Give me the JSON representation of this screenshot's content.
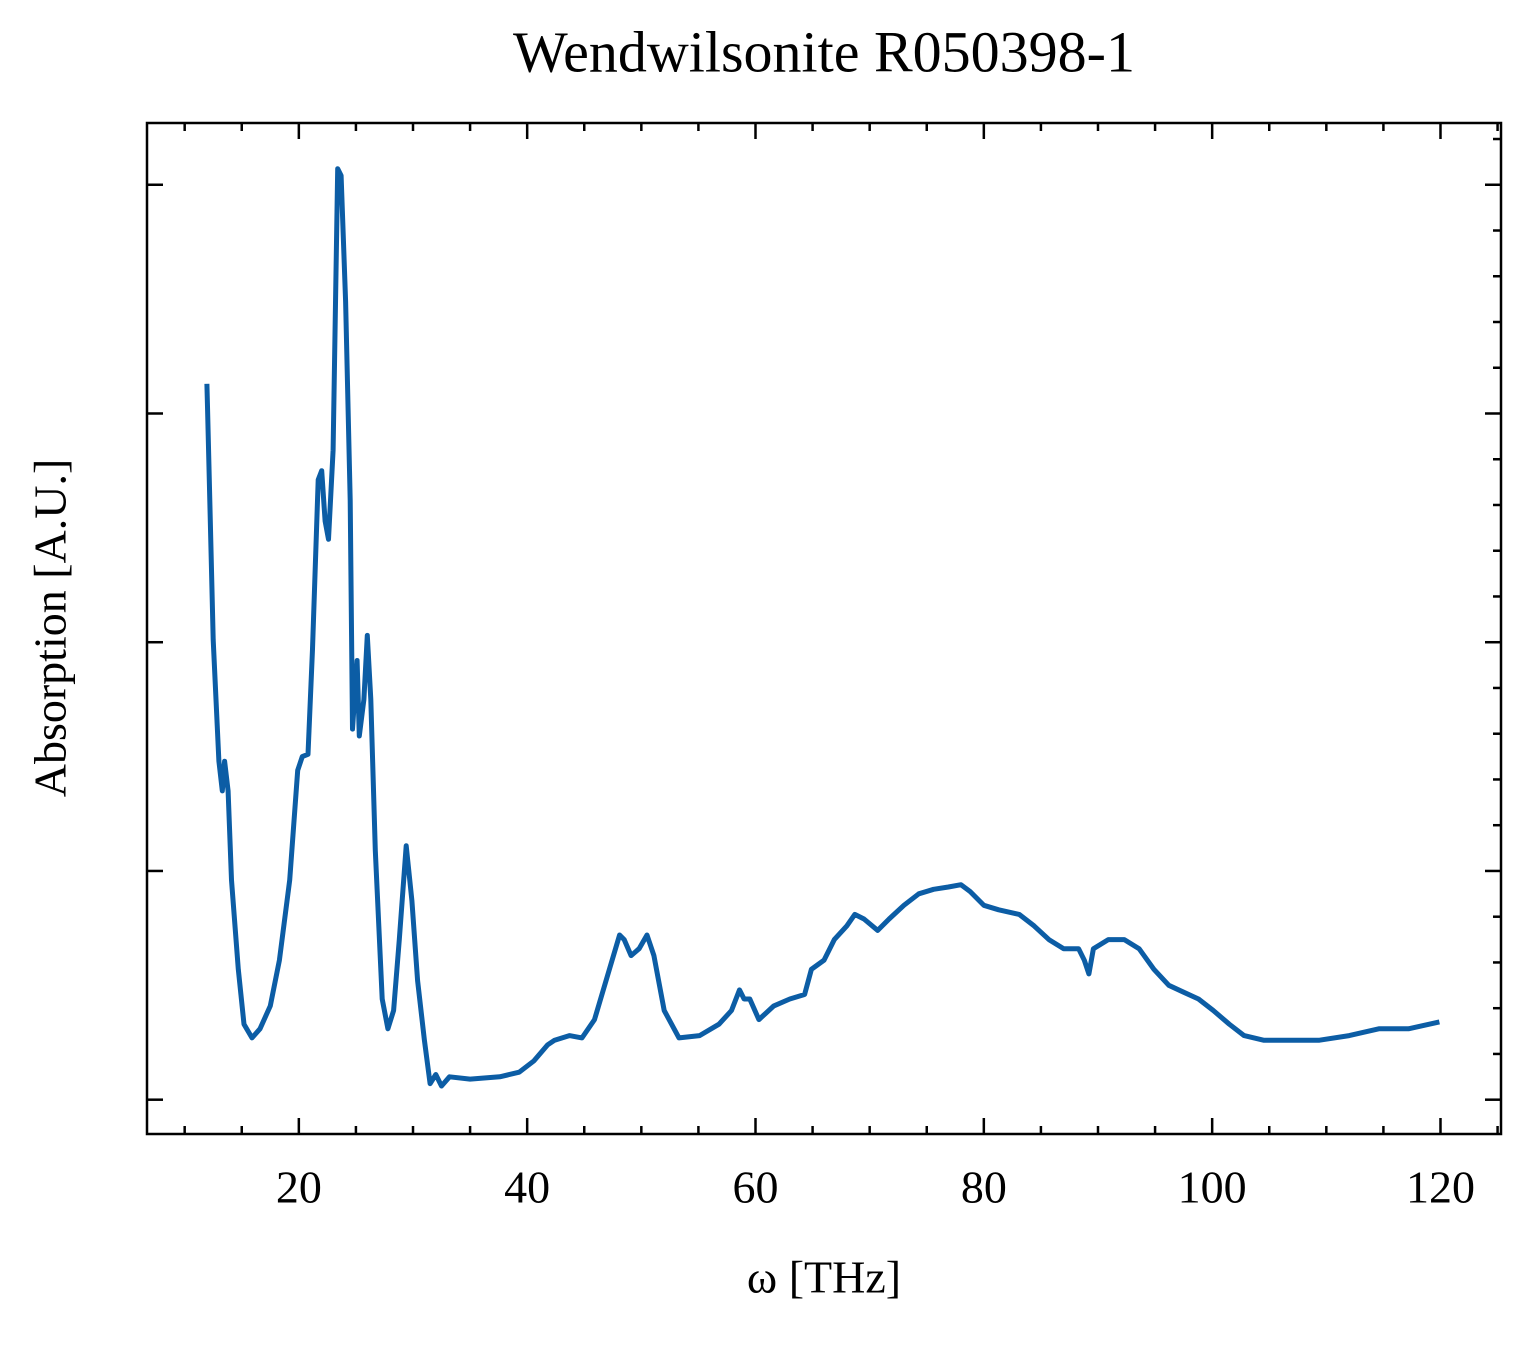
{
  "chart_data": {
    "type": "line",
    "title": "Wendwilsonite R050398-1",
    "xlabel": "ω [THz]",
    "ylabel": "Absorption [A.U.]",
    "xlim": [
      6.7,
      125.3
    ],
    "ylim": [
      -0.15,
      4.27
    ],
    "xticks": [
      20,
      40,
      60,
      80,
      100,
      120
    ],
    "yticks": [
      0,
      1,
      2,
      3,
      4
    ],
    "ytick_labels": false,
    "series": [
      {
        "color": "#0c5da5",
        "x": [
          11.95,
          12.0,
          12.2,
          12.5,
          13.0,
          13.3,
          13.5,
          13.8,
          14.1,
          14.7,
          15.2,
          15.9,
          16.6,
          17.5,
          18.3,
          19.2,
          19.9,
          20.3,
          20.8,
          21.2,
          21.7,
          22.0,
          22.3,
          22.6,
          23.0,
          23.4,
          23.7,
          24.1,
          24.5,
          24.7,
          25.1,
          25.3,
          25.7,
          26.0,
          26.3,
          26.7,
          27.3,
          27.8,
          28.3,
          28.8,
          29.4,
          29.9,
          30.4,
          31.0,
          31.5,
          32.0,
          32.5,
          33.2,
          35.0,
          37.6,
          39.3,
          40.6,
          41.8,
          42.4,
          43.7,
          44.8,
          45.9,
          47.2,
          48.1,
          48.5,
          49.1,
          49.8,
          50.5,
          51.1,
          52.0,
          53.3,
          55.1,
          56.8,
          57.9,
          58.6,
          59.0,
          59.5,
          60.3,
          61.6,
          63.0,
          64.3,
          64.9,
          66.0,
          66.9,
          68.0,
          68.7,
          69.5,
          70.7,
          71.7,
          73.0,
          74.3,
          75.6,
          76.9,
          78.0,
          78.8,
          80.0,
          81.3,
          83.1,
          84.4,
          85.7,
          87.0,
          88.3,
          88.8,
          89.2,
          89.6,
          90.9,
          92.3,
          93.6,
          94.9,
          96.2,
          97.5,
          98.8,
          100.1,
          101.5,
          102.8,
          104.5,
          106.7,
          109.4,
          112.0,
          114.6,
          117.2,
          119.9
        ],
        "values": [
          3.13,
          3.03,
          2.62,
          2.01,
          1.48,
          1.35,
          1.48,
          1.35,
          0.96,
          0.57,
          0.33,
          0.27,
          0.31,
          0.41,
          0.61,
          0.96,
          1.44,
          1.5,
          1.51,
          1.97,
          2.71,
          2.75,
          2.53,
          2.45,
          2.84,
          4.07,
          4.04,
          3.49,
          2.62,
          1.62,
          1.92,
          1.59,
          1.75,
          2.03,
          1.75,
          1.09,
          0.44,
          0.31,
          0.39,
          0.7,
          1.11,
          0.87,
          0.52,
          0.26,
          0.07,
          0.11,
          0.06,
          0.1,
          0.09,
          0.1,
          0.12,
          0.17,
          0.24,
          0.26,
          0.28,
          0.27,
          0.35,
          0.57,
          0.72,
          0.7,
          0.63,
          0.66,
          0.72,
          0.63,
          0.39,
          0.27,
          0.28,
          0.33,
          0.39,
          0.48,
          0.44,
          0.44,
          0.35,
          0.41,
          0.44,
          0.46,
          0.57,
          0.61,
          0.7,
          0.76,
          0.81,
          0.79,
          0.74,
          0.79,
          0.85,
          0.9,
          0.92,
          0.93,
          0.94,
          0.91,
          0.85,
          0.83,
          0.81,
          0.76,
          0.7,
          0.66,
          0.66,
          0.61,
          0.55,
          0.66,
          0.7,
          0.7,
          0.66,
          0.57,
          0.5,
          0.47,
          0.44,
          0.39,
          0.33,
          0.28,
          0.26,
          0.26,
          0.26,
          0.28,
          0.31,
          0.31,
          0.34
        ]
      }
    ]
  }
}
